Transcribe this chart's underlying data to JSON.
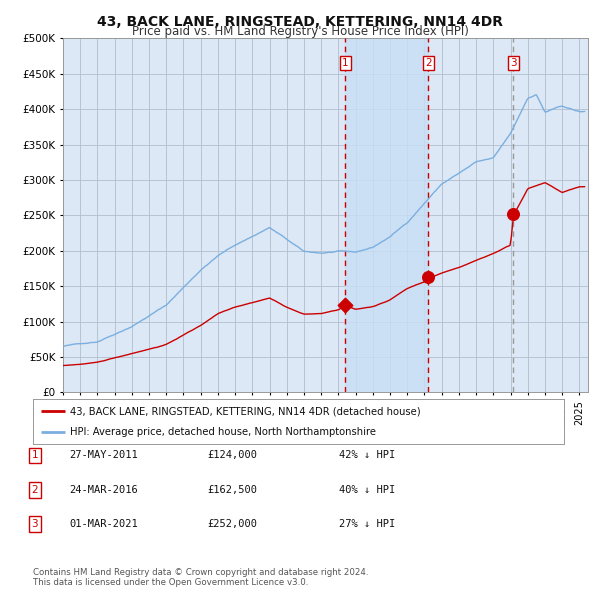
{
  "title": "43, BACK LANE, RINGSTEAD, KETTERING, NN14 4DR",
  "subtitle": "Price paid vs. HM Land Registry's House Price Index (HPI)",
  "title_fontsize": 10,
  "subtitle_fontsize": 8.5,
  "ylabel_ticks": [
    "£0",
    "£50K",
    "£100K",
    "£150K",
    "£200K",
    "£250K",
    "£300K",
    "£350K",
    "£400K",
    "£450K",
    "£500K"
  ],
  "ytick_values": [
    0,
    50000,
    100000,
    150000,
    200000,
    250000,
    300000,
    350000,
    400000,
    450000,
    500000
  ],
  "ylim": [
    0,
    500000
  ],
  "xlim_start": 1995.0,
  "xlim_end": 2025.5,
  "background_color": "#ffffff",
  "plot_bg_color": "#dce8f5",
  "grid_color": "#b0bece",
  "sale_dates": [
    2011.41,
    2016.23,
    2021.17
  ],
  "sale_prices": [
    124000,
    162500,
    252000
  ],
  "sale_labels": [
    "1",
    "2",
    "3"
  ],
  "red_dashed_dates": [
    2011.41,
    2016.23
  ],
  "grey_dashed_date": 2021.17,
  "shaded_region": [
    2011.41,
    2016.23
  ],
  "legend_red_label": "43, BACK LANE, RINGSTEAD, KETTERING, NN14 4DR (detached house)",
  "legend_blue_label": "HPI: Average price, detached house, North Northamptonshire",
  "table_rows": [
    {
      "num": "1",
      "date": "27-MAY-2011",
      "price": "£124,000",
      "pct": "42% ↓ HPI"
    },
    {
      "num": "2",
      "date": "24-MAR-2016",
      "price": "£162,500",
      "pct": "40% ↓ HPI"
    },
    {
      "num": "3",
      "date": "01-MAR-2021",
      "price": "£252,000",
      "pct": "27% ↓ HPI"
    }
  ],
  "footer_text": "Contains HM Land Registry data © Crown copyright and database right 2024.\nThis data is licensed under the Open Government Licence v3.0.",
  "red_line_color": "#cc0000",
  "blue_line_color": "#7aafe0",
  "sale_marker_color": "#cc0000",
  "red_dashed_color": "#cc0000",
  "grey_dashed_color": "#999999"
}
